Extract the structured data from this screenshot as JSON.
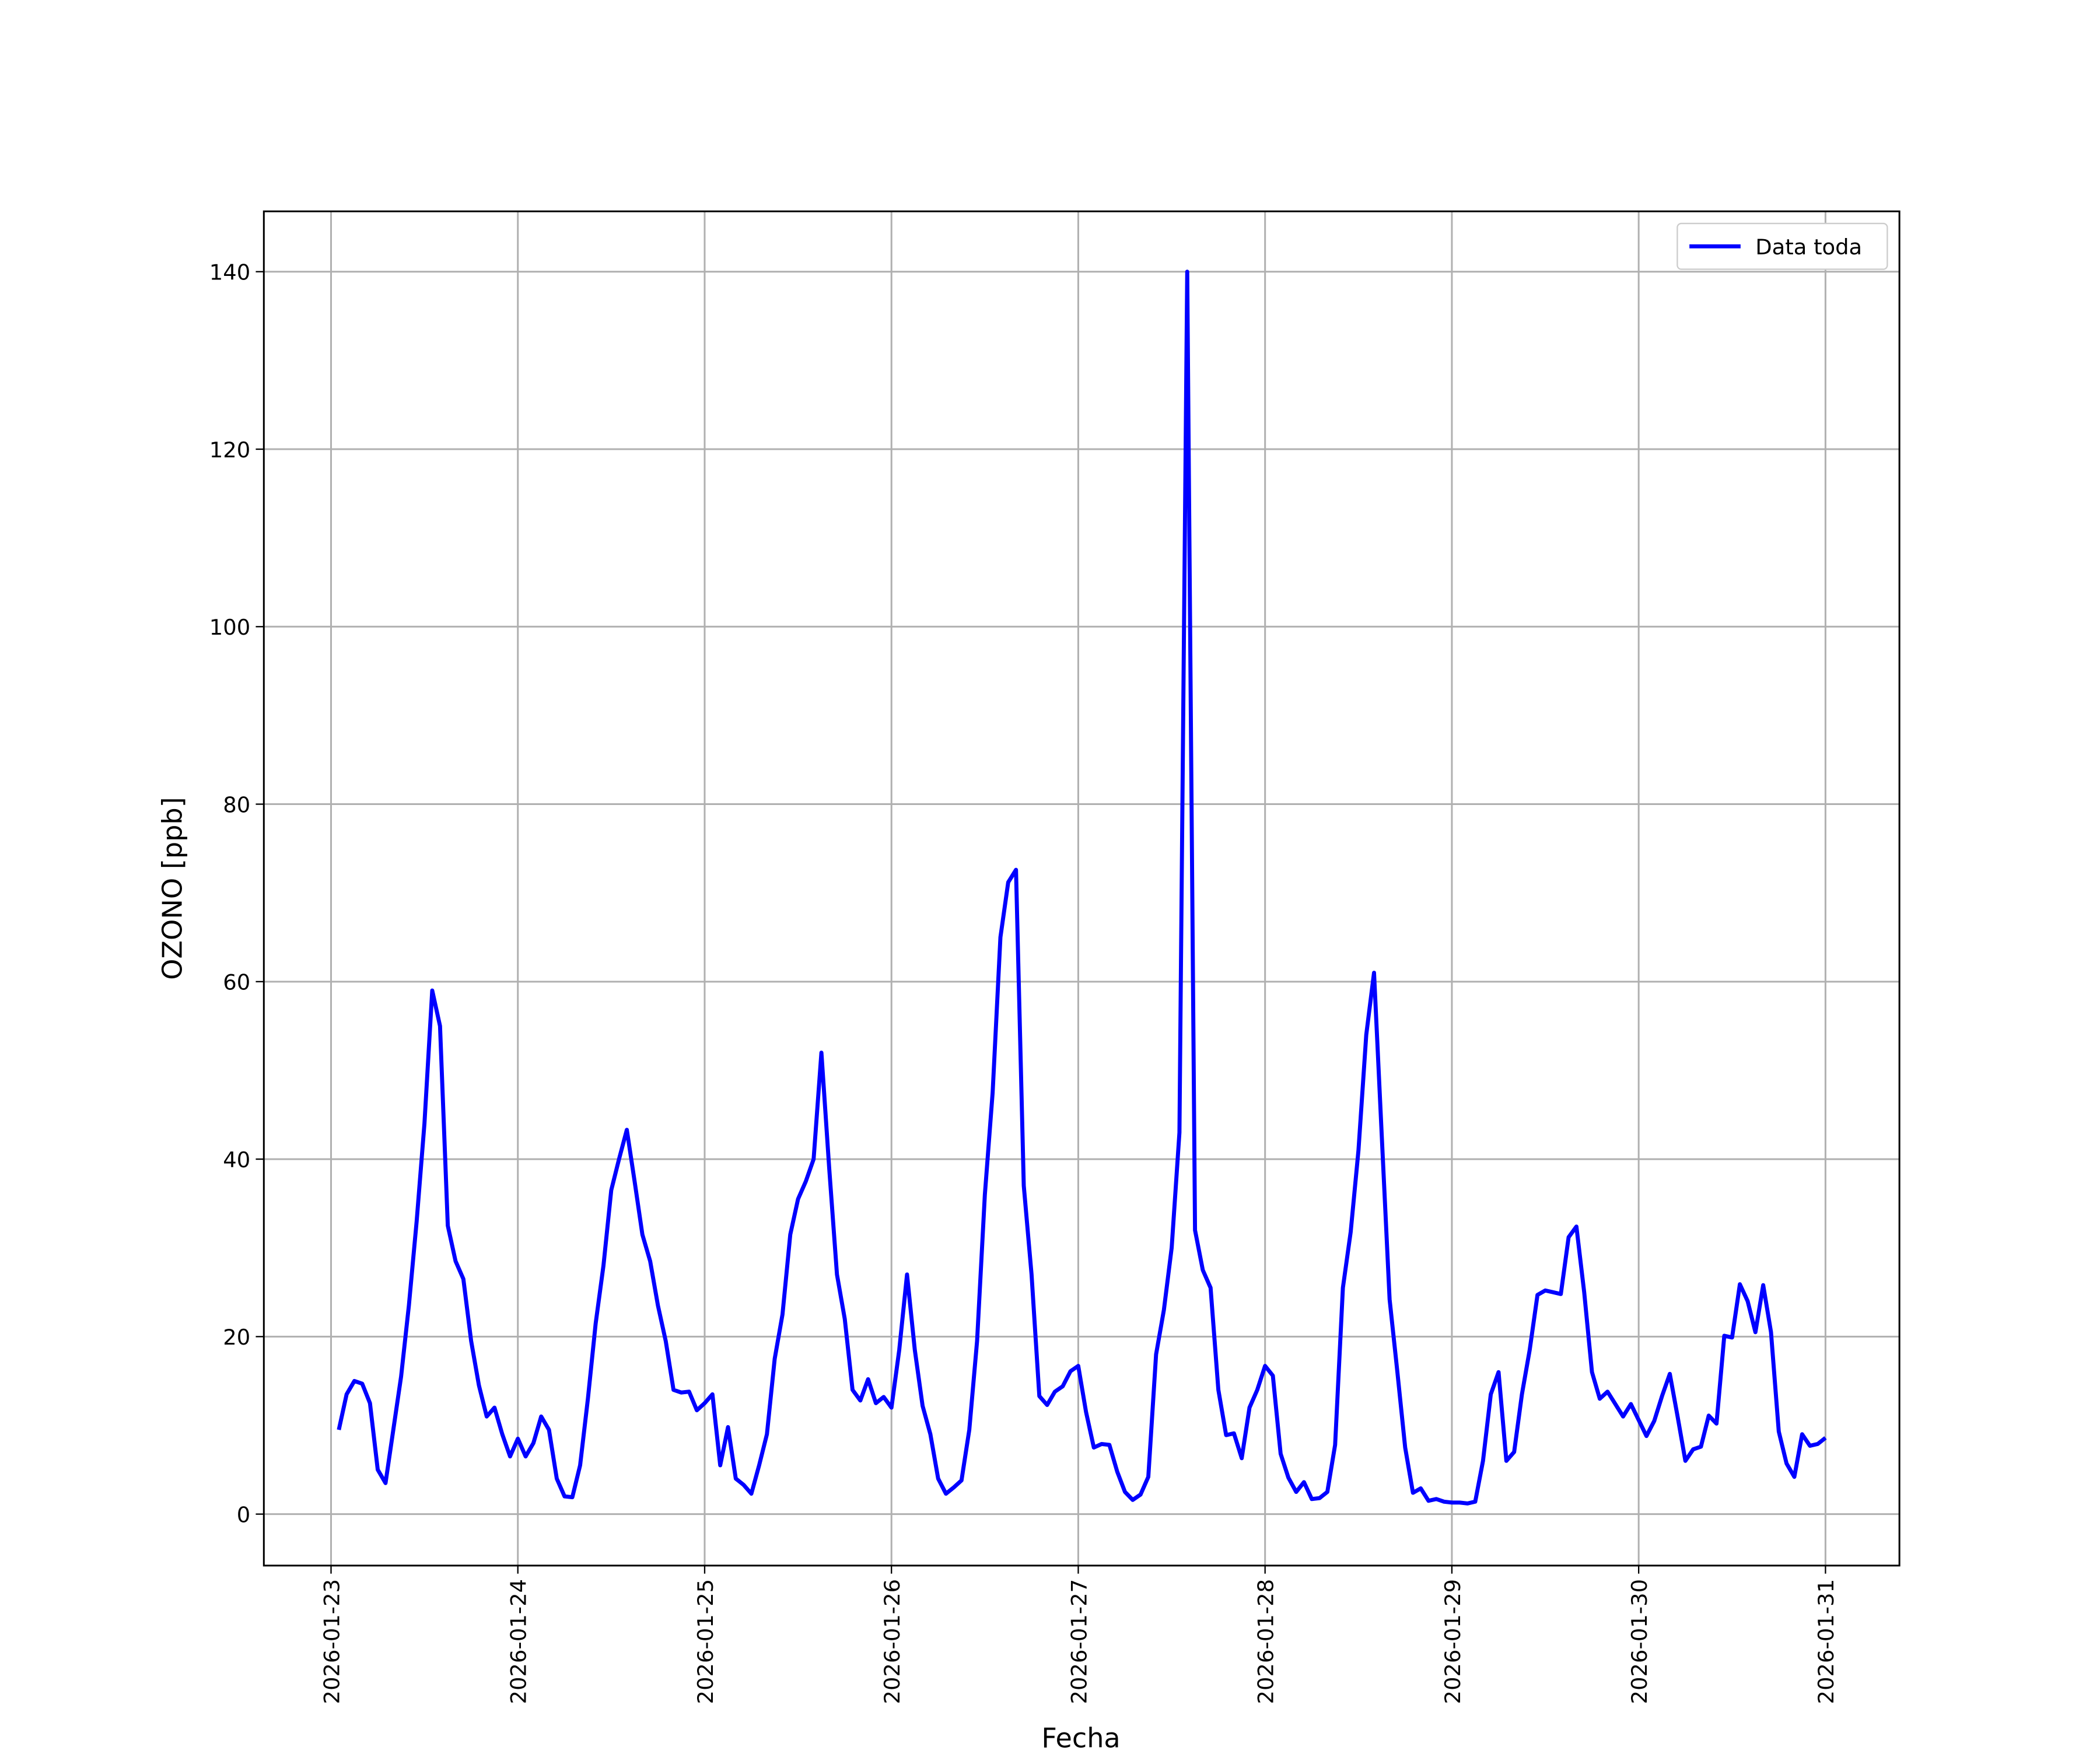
{
  "chart_data": {
    "type": "line",
    "xlabel": "Fecha",
    "ylabel": "OZONO [ppb]",
    "x": [
      "2026-01-23 01:00",
      "2026-01-23 02:00",
      "2026-01-23 03:00",
      "2026-01-23 04:00",
      "2026-01-23 05:00",
      "2026-01-23 06:00",
      "2026-01-23 07:00",
      "2026-01-23 08:00",
      "2026-01-23 09:00",
      "2026-01-23 10:00",
      "2026-01-23 11:00",
      "2026-01-23 12:00",
      "2026-01-23 13:00",
      "2026-01-23 14:00",
      "2026-01-23 15:00",
      "2026-01-23 16:00",
      "2026-01-23 17:00",
      "2026-01-23 18:00",
      "2026-01-23 19:00",
      "2026-01-23 20:00",
      "2026-01-23 21:00",
      "2026-01-23 22:00",
      "2026-01-23 23:00",
      "2026-01-24 00:00",
      "2026-01-24 01:00",
      "2026-01-24 02:00",
      "2026-01-24 03:00",
      "2026-01-24 04:00",
      "2026-01-24 05:00",
      "2026-01-24 06:00",
      "2026-01-24 07:00",
      "2026-01-24 08:00",
      "2026-01-24 09:00",
      "2026-01-24 10:00",
      "2026-01-24 11:00",
      "2026-01-24 12:00",
      "2026-01-24 13:00",
      "2026-01-24 14:00",
      "2026-01-24 15:00",
      "2026-01-24 16:00",
      "2026-01-24 17:00",
      "2026-01-24 18:00",
      "2026-01-24 19:00",
      "2026-01-24 20:00",
      "2026-01-24 21:00",
      "2026-01-24 22:00",
      "2026-01-24 23:00",
      "2026-01-25 00:00",
      "2026-01-25 01:00",
      "2026-01-25 02:00",
      "2026-01-25 03:00",
      "2026-01-25 04:00",
      "2026-01-25 05:00",
      "2026-01-25 06:00",
      "2026-01-25 07:00",
      "2026-01-25 08:00",
      "2026-01-25 09:00",
      "2026-01-25 10:00",
      "2026-01-25 11:00",
      "2026-01-25 12:00",
      "2026-01-25 13:00",
      "2026-01-25 14:00",
      "2026-01-25 15:00",
      "2026-01-25 16:00",
      "2026-01-25 17:00",
      "2026-01-25 18:00",
      "2026-01-25 19:00",
      "2026-01-25 20:00",
      "2026-01-25 21:00",
      "2026-01-25 22:00",
      "2026-01-25 23:00",
      "2026-01-26 00:00",
      "2026-01-26 01:00",
      "2026-01-26 02:00",
      "2026-01-26 03:00",
      "2026-01-26 04:00",
      "2026-01-26 05:00",
      "2026-01-26 06:00",
      "2026-01-26 07:00",
      "2026-01-26 08:00",
      "2026-01-26 09:00",
      "2026-01-26 10:00",
      "2026-01-26 11:00",
      "2026-01-26 12:00",
      "2026-01-26 13:00",
      "2026-01-26 14:00",
      "2026-01-26 15:00",
      "2026-01-26 16:00",
      "2026-01-26 17:00",
      "2026-01-26 18:00",
      "2026-01-26 19:00",
      "2026-01-26 20:00",
      "2026-01-26 21:00",
      "2026-01-26 22:00",
      "2026-01-26 23:00",
      "2026-01-27 00:00",
      "2026-01-27 01:00",
      "2026-01-27 02:00",
      "2026-01-27 03:00",
      "2026-01-27 04:00",
      "2026-01-27 05:00",
      "2026-01-27 06:00",
      "2026-01-27 07:00",
      "2026-01-27 08:00",
      "2026-01-27 09:00",
      "2026-01-27 10:00",
      "2026-01-27 11:00",
      "2026-01-27 12:00",
      "2026-01-27 13:00",
      "2026-01-27 14:00",
      "2026-01-27 15:00",
      "2026-01-27 16:00",
      "2026-01-27 17:00",
      "2026-01-27 18:00",
      "2026-01-27 19:00",
      "2026-01-27 20:00",
      "2026-01-27 21:00",
      "2026-01-27 22:00",
      "2026-01-27 23:00",
      "2026-01-28 00:00",
      "2026-01-28 01:00",
      "2026-01-28 02:00",
      "2026-01-28 03:00",
      "2026-01-28 04:00",
      "2026-01-28 05:00",
      "2026-01-28 06:00",
      "2026-01-28 07:00",
      "2026-01-28 08:00",
      "2026-01-28 09:00",
      "2026-01-28 10:00",
      "2026-01-28 11:00",
      "2026-01-28 12:00",
      "2026-01-28 13:00",
      "2026-01-28 14:00",
      "2026-01-28 15:00",
      "2026-01-28 16:00",
      "2026-01-28 17:00",
      "2026-01-28 18:00",
      "2026-01-28 19:00",
      "2026-01-28 20:00",
      "2026-01-28 21:00",
      "2026-01-28 22:00",
      "2026-01-28 23:00",
      "2026-01-29 00:00",
      "2026-01-29 01:00",
      "2026-01-29 02:00",
      "2026-01-29 03:00",
      "2026-01-29 04:00",
      "2026-01-29 05:00",
      "2026-01-29 06:00",
      "2026-01-29 07:00",
      "2026-01-29 08:00",
      "2026-01-29 09:00",
      "2026-01-29 10:00",
      "2026-01-29 11:00",
      "2026-01-29 12:00",
      "2026-01-29 13:00",
      "2026-01-29 14:00",
      "2026-01-29 15:00",
      "2026-01-29 16:00",
      "2026-01-29 17:00",
      "2026-01-29 18:00",
      "2026-01-29 19:00",
      "2026-01-29 20:00",
      "2026-01-29 21:00",
      "2026-01-29 22:00",
      "2026-01-29 23:00",
      "2026-01-30 00:00",
      "2026-01-30 01:00",
      "2026-01-30 02:00",
      "2026-01-30 03:00",
      "2026-01-30 04:00",
      "2026-01-30 05:00",
      "2026-01-30 06:00",
      "2026-01-30 07:00",
      "2026-01-30 08:00",
      "2026-01-30 09:00",
      "2026-01-30 10:00",
      "2026-01-30 11:00",
      "2026-01-30 12:00",
      "2026-01-30 13:00",
      "2026-01-30 14:00",
      "2026-01-30 15:00",
      "2026-01-30 16:00",
      "2026-01-30 17:00",
      "2026-01-30 18:00",
      "2026-01-30 19:00",
      "2026-01-30 20:00",
      "2026-01-30 21:00",
      "2026-01-30 22:00",
      "2026-01-30 23:00",
      "2026-01-31 00:00"
    ],
    "series": [
      {
        "name": "Data toda",
        "color": "#0000ff",
        "values": [
          9.5,
          13.5,
          15,
          14.7,
          12.5,
          5,
          3.5,
          9.5,
          15.5,
          23.5,
          33,
          44,
          59,
          55,
          32.5,
          28.5,
          26.5,
          19.5,
          14.5,
          11,
          12,
          9,
          6.5,
          8.5,
          6.5,
          8,
          11,
          9.5,
          4,
          2,
          1.9,
          5.5,
          13,
          21.5,
          28,
          36.5,
          40,
          43.3,
          37.5,
          31.5,
          28.5,
          23.5,
          19.5,
          14,
          13.7,
          13.8,
          11.7,
          12.5,
          13.5,
          5.5,
          9.8,
          4,
          3.3,
          2.3,
          5.5,
          9,
          17.5,
          22.5,
          31.5,
          35.5,
          37.5,
          40,
          52,
          39,
          27,
          22,
          14,
          12.8,
          15.2,
          12.5,
          13.2,
          12,
          18.5,
          27,
          18.5,
          12.2,
          9,
          4,
          2.3,
          3,
          3.8,
          9.5,
          19.5,
          36,
          47.5,
          65,
          71.2,
          72.6,
          37,
          27,
          13.3,
          12.3,
          13.8,
          14.4,
          16.1,
          16.7,
          11.5,
          7.5,
          7.9,
          7.8,
          4.8,
          2.5,
          1.6,
          2.2,
          4.2,
          18,
          23,
          30,
          43,
          140,
          32,
          27.5,
          25.5,
          14,
          8.9,
          9.1,
          6.3,
          12,
          14,
          16.7,
          15.6,
          6.8,
          4.1,
          2.5,
          3.6,
          1.7,
          1.8,
          2.5,
          7.8,
          25.5,
          31.8,
          41,
          54,
          61,
          42.5,
          24.2,
          16,
          7.5,
          2.4,
          2.9,
          1.5,
          1.7,
          1.4,
          1.3,
          1.3,
          1.2,
          1.4,
          6,
          13.5,
          16,
          6,
          7,
          13.5,
          18.5,
          24.7,
          25.2,
          25,
          24.8,
          31.2,
          32.4,
          25,
          16,
          13,
          13.8,
          12.4,
          11,
          12.4,
          10.6,
          8.8,
          10.5,
          13.3,
          15.8,
          11,
          6,
          7.3,
          7.6,
          11.1,
          10.2,
          20.1,
          19.9,
          25.9,
          24,
          20.5,
          25.8,
          20.5,
          9.3,
          5.7,
          4.2,
          9,
          7.7,
          7.9,
          8.6
        ]
      }
    ],
    "xlim": [
      "2026-01-22 15:22",
      "2026-01-31 09:30"
    ],
    "xticks": [
      "2026-01-23",
      "2026-01-24",
      "2026-01-25",
      "2026-01-26",
      "2026-01-27",
      "2026-01-28",
      "2026-01-29",
      "2026-01-30",
      "2026-01-31"
    ],
    "ylim": [
      -5.8,
      146.8
    ],
    "yticks": [
      0,
      20,
      40,
      60,
      80,
      100,
      120,
      140
    ],
    "grid": true,
    "legend": "upper right"
  }
}
